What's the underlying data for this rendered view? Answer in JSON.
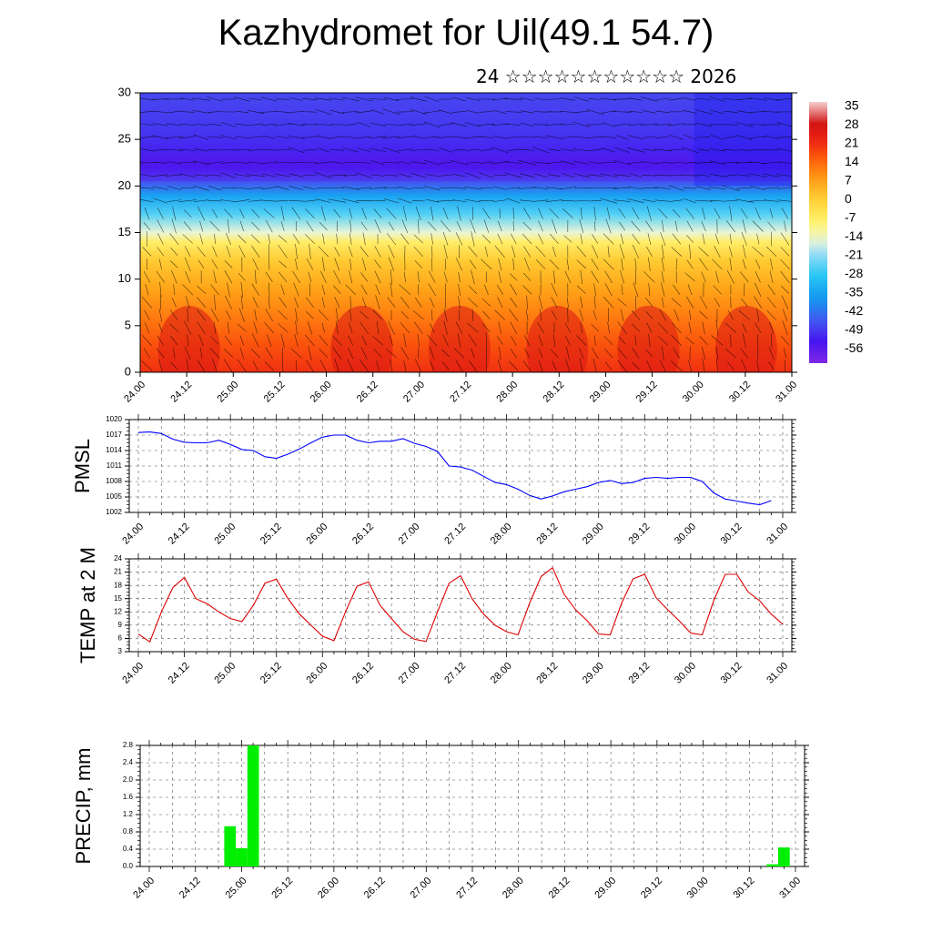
{
  "title": "Kazhydromet for Uil(49.1 54.7)",
  "subtitle": "24 ☆☆☆☆☆☆☆☆☆☆☆ 2026",
  "time_labels": [
    "24.00",
    "24.12",
    "25.00",
    "25.12",
    "26.00",
    "26.12",
    "27.00",
    "27.12",
    "28.00",
    "28.12",
    "29.00",
    "29.12",
    "30.00",
    "30.12",
    "31.00"
  ],
  "chart_data": [
    {
      "type": "heatmap",
      "title": "",
      "ylim": [
        0,
        30
      ],
      "y_ticks": [
        "0",
        "5",
        "10",
        "15",
        "20",
        "25",
        "30"
      ],
      "colorbar_labels": [
        "35",
        "28",
        "21",
        "14",
        "7",
        "0",
        "-7",
        "-14",
        "-21",
        "-28",
        "-35",
        "-42",
        "-49",
        "-56"
      ],
      "colorbar_range": [
        -60,
        38
      ],
      "overlay": "wind vector streamlines",
      "temperature_profile": {
        "levels": [
          0,
          3,
          6,
          9,
          12,
          14,
          15,
          17,
          19,
          20.5,
          22,
          24,
          26,
          28,
          30
        ],
        "values": [
          22,
          18,
          13,
          8,
          2,
          -6,
          -14,
          -24,
          -34,
          -45,
          -52,
          -50,
          -48,
          -47,
          -46
        ]
      },
      "colors": {
        "warm_max": "#e81818",
        "neutral": "#fff8b0",
        "cold_min": "#6a22ee"
      }
    },
    {
      "type": "line",
      "ylabel": "PMSL",
      "ylim": [
        1002,
        1020
      ],
      "y_ticks": [
        "1002",
        "1005",
        "1008",
        "1011",
        "1014",
        "1017",
        "1020"
      ],
      "color": "#0000ff",
      "values": [
        1017.5,
        1017.6,
        1017.3,
        1016.2,
        1015.6,
        1015.5,
        1015.5,
        1016.0,
        1015.2,
        1014.2,
        1014.0,
        1012.8,
        1012.5,
        1013.3,
        1014.3,
        1015.5,
        1016.6,
        1017.0,
        1017.0,
        1016.0,
        1015.5,
        1015.8,
        1015.8,
        1016.3,
        1015.4,
        1014.8,
        1013.8,
        1011.0,
        1010.8,
        1010.2,
        1009.0,
        1007.8,
        1007.4,
        1006.5,
        1005.3,
        1004.6,
        1005.2,
        1006.0,
        1006.5,
        1007.0,
        1007.8,
        1008.2,
        1007.6,
        1007.8,
        1008.6,
        1008.8,
        1008.6,
        1008.8,
        1008.8,
        1008.0,
        1005.8,
        1004.6,
        1004.2,
        1003.8,
        1003.5,
        1004.3
      ]
    },
    {
      "type": "line",
      "ylabel": "TEMP at 2 M",
      "ylim": [
        3,
        24
      ],
      "y_ticks": [
        "3",
        "6",
        "9",
        "12",
        "15",
        "18",
        "21",
        "24"
      ],
      "color": "#dd0000",
      "values": [
        7,
        5.2,
        12,
        17.5,
        19.8,
        15,
        13.8,
        12,
        10.5,
        9.8,
        13.5,
        18.5,
        19.4,
        15,
        11.5,
        9,
        6.5,
        5.5,
        12,
        17.8,
        18.8,
        13.5,
        10.5,
        7.5,
        5.8,
        5.3,
        12,
        18.5,
        20.2,
        15,
        11.5,
        9,
        7.5,
        6.8,
        14,
        20,
        22,
        16,
        12.5,
        10,
        7,
        6.8,
        14,
        19.5,
        20.5,
        15.2,
        12.5,
        10,
        7.2,
        6.8,
        14.5,
        20.5,
        20.5,
        16.5,
        14.5,
        11.5,
        9.2
      ]
    },
    {
      "type": "bar",
      "ylabel": "PRECIP, mm",
      "ylim": [
        0,
        2.8
      ],
      "y_ticks": [
        "0.0",
        "0.4",
        "0.8",
        "1.2",
        "1.6",
        "2.0",
        "2.4",
        "2.8"
      ],
      "color": "#00ee00",
      "bars": [
        {
          "x": 7,
          "value": 0.93
        },
        {
          "x": 8,
          "value": 0.42
        },
        {
          "x": 9,
          "value": 2.8
        },
        {
          "x": 54,
          "value": 0.05
        },
        {
          "x": 55,
          "value": 0.44
        }
      ]
    }
  ]
}
